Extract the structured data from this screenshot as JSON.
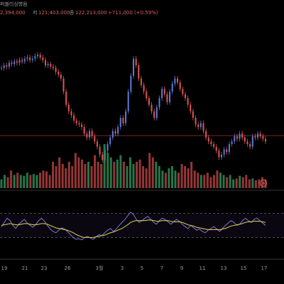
{
  "header": {
    "low_fragment": "2,394,000",
    "close_label": "저",
    "close_value": "121,403,000",
    "last_label": "종",
    "last_value": "122,213,000",
    "change_text": "+711,000 (+0.59%)",
    "prefix": "퍼블리싱병음"
  },
  "colors": {
    "up": "#5b7bd9",
    "down": "#e05555",
    "vol_up": "#2e8b57",
    "vol_down": "#b04040",
    "rsi_line": "#8f80e6",
    "rsi_ma": "#d4c24a",
    "ref_line": "#a83232",
    "header_text": "#d96060"
  },
  "alert_icon": "flash-icon",
  "chart_data": {
    "type": "candlestick",
    "x_tick_labels": [
      "19",
      "21",
      "23",
      "26",
      "3월",
      "3",
      "5",
      "7",
      "9",
      "11",
      "13",
      "15",
      "17"
    ],
    "price_reference": 0.265,
    "rsi_bands": [
      70,
      30
    ],
    "price_series": [
      0.78,
      0.8,
      0.79,
      0.82,
      0.81,
      0.83,
      0.82,
      0.84,
      0.83,
      0.85,
      0.86,
      0.84,
      0.85,
      0.87,
      0.88,
      0.86,
      0.84,
      0.8,
      0.81,
      0.79,
      0.78,
      0.75,
      0.73,
      0.7,
      0.6,
      0.5,
      0.45,
      0.42,
      0.38,
      0.36,
      0.35,
      0.33,
      0.28,
      0.25,
      0.3,
      0.26,
      0.22,
      0.18,
      0.12,
      0.08,
      0.15,
      0.2,
      0.25,
      0.3,
      0.28,
      0.33,
      0.4,
      0.36,
      0.45,
      0.6,
      0.72,
      0.85,
      0.8,
      0.7,
      0.65,
      0.6,
      0.55,
      0.5,
      0.45,
      0.4,
      0.48,
      0.55,
      0.62,
      0.58,
      0.52,
      0.6,
      0.66,
      0.7,
      0.67,
      0.62,
      0.58,
      0.55,
      0.5,
      0.45,
      0.4,
      0.35,
      0.33,
      0.36,
      0.3,
      0.25,
      0.22,
      0.2,
      0.18,
      0.15,
      0.1,
      0.12,
      0.16,
      0.14,
      0.2,
      0.22,
      0.26,
      0.24,
      0.28,
      0.25,
      0.22,
      0.2,
      0.18,
      0.26,
      0.25,
      0.28,
      0.26,
      0.24,
      0.22
    ],
    "rsi_series": [
      48,
      55,
      62,
      58,
      50,
      45,
      52,
      56,
      60,
      54,
      50,
      47,
      52,
      58,
      62,
      57,
      50,
      44,
      40,
      38,
      42,
      46,
      44,
      40,
      35,
      30,
      27,
      28,
      26,
      30,
      32,
      29,
      27,
      31,
      35,
      33,
      38,
      42,
      45,
      40,
      44,
      50,
      55,
      60,
      66,
      72,
      68,
      60,
      55,
      58,
      62,
      65,
      60,
      55,
      52,
      58,
      62,
      60,
      56,
      52,
      56,
      60,
      57,
      52,
      48,
      45,
      50,
      46,
      42,
      44,
      40,
      38,
      42,
      45,
      48,
      44,
      40,
      45,
      50,
      54,
      58,
      55,
      50,
      52,
      58,
      62,
      58,
      55,
      60,
      62,
      58,
      54,
      50
    ],
    "rsi_ma_series": [
      50,
      51,
      52,
      53,
      52,
      51,
      51,
      52,
      53,
      53,
      52,
      51,
      51,
      52,
      53,
      53,
      52,
      50,
      48,
      46,
      45,
      44,
      43,
      42,
      40,
      38,
      35,
      33,
      31,
      30,
      30,
      30,
      30,
      31,
      32,
      33,
      34,
      36,
      38,
      39,
      41,
      43,
      45,
      48,
      51,
      55,
      57,
      58,
      58,
      58,
      58,
      59,
      59,
      58,
      57,
      57,
      58,
      58,
      58,
      57,
      56,
      56,
      56,
      55,
      53,
      51,
      50,
      49,
      47,
      46,
      45,
      44,
      43,
      43,
      43,
      43,
      43,
      44,
      45,
      47,
      49,
      50,
      51,
      52,
      53,
      55,
      56,
      56,
      57,
      57,
      57,
      56,
      55
    ],
    "volume_series": [
      0.2,
      0.3,
      0.25,
      0.4,
      0.3,
      0.35,
      0.3,
      0.28,
      0.35,
      0.3,
      0.32,
      0.3,
      0.35,
      0.4,
      0.38,
      0.3,
      0.6,
      0.5,
      0.7,
      0.55,
      0.45,
      0.6,
      0.5,
      0.8,
      0.7,
      0.65,
      0.55,
      0.6,
      0.5,
      0.75,
      0.6,
      0.55,
      1.0,
      0.8,
      0.7,
      0.6,
      0.65,
      0.75,
      0.6,
      0.5,
      0.7,
      0.55,
      0.6,
      0.65,
      0.5,
      0.45,
      0.8,
      0.7,
      0.6,
      0.5,
      0.4,
      0.35,
      0.45,
      0.5,
      0.4,
      0.35,
      0.55,
      0.5,
      0.45,
      0.6,
      0.4,
      0.35,
      0.3,
      0.3,
      0.35,
      0.25,
      0.3,
      0.4,
      0.35,
      0.3,
      0.25,
      0.3,
      0.2,
      0.22,
      0.28,
      0.25,
      0.3,
      0.2,
      0.22,
      0.18,
      0.2,
      0.25,
      0.2
    ]
  }
}
